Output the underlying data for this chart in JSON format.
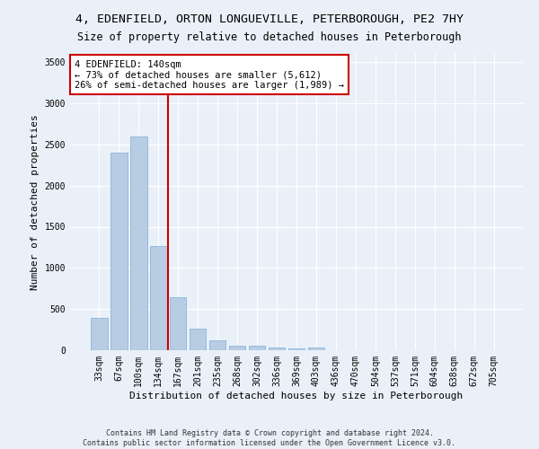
{
  "title": "4, EDENFIELD, ORTON LONGUEVILLE, PETERBOROUGH, PE2 7HY",
  "subtitle": "Size of property relative to detached houses in Peterborough",
  "xlabel": "Distribution of detached houses by size in Peterborough",
  "ylabel": "Number of detached properties",
  "categories": [
    "33sqm",
    "67sqm",
    "100sqm",
    "134sqm",
    "167sqm",
    "201sqm",
    "235sqm",
    "268sqm",
    "302sqm",
    "336sqm",
    "369sqm",
    "403sqm",
    "436sqm",
    "470sqm",
    "504sqm",
    "537sqm",
    "571sqm",
    "604sqm",
    "638sqm",
    "672sqm",
    "705sqm"
  ],
  "values": [
    390,
    2400,
    2600,
    1270,
    640,
    265,
    115,
    60,
    50,
    35,
    25,
    30,
    0,
    0,
    0,
    0,
    0,
    0,
    0,
    0,
    0
  ],
  "bar_color": "#b8cce4",
  "bar_edge_color": "#7bafd4",
  "vline_color": "#cc0000",
  "vline_x": 3.5,
  "annotation_text": "4 EDENFIELD: 140sqm\n← 73% of detached houses are smaller (5,612)\n26% of semi-detached houses are larger (1,989) →",
  "annotation_box_facecolor": "#ffffff",
  "annotation_box_edgecolor": "#cc0000",
  "ylim": [
    0,
    3600
  ],
  "yticks": [
    0,
    500,
    1000,
    1500,
    2000,
    2500,
    3000,
    3500
  ],
  "footnote1": "Contains HM Land Registry data © Crown copyright and database right 2024.",
  "footnote2": "Contains public sector information licensed under the Open Government Licence v3.0.",
  "bg_color": "#eaf0f8",
  "title_fontsize": 9.5,
  "subtitle_fontsize": 8.5,
  "ylabel_fontsize": 8,
  "xlabel_fontsize": 8,
  "tick_fontsize": 7,
  "annotation_fontsize": 7.5,
  "footnote_fontsize": 6
}
